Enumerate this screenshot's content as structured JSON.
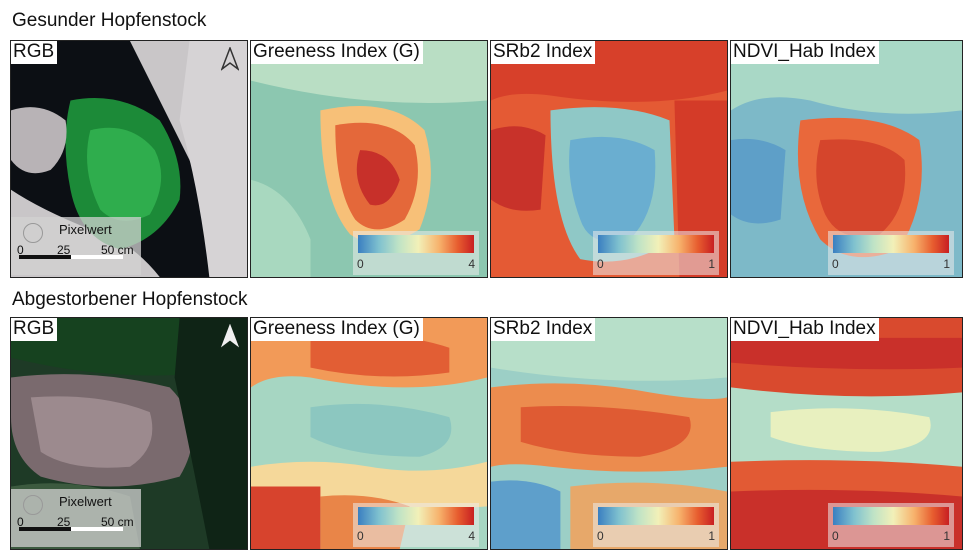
{
  "sections": [
    {
      "title": "Gesunder Hopfenstock",
      "panels": [
        {
          "label": "RGB",
          "scale": {
            "pixel_label": "Pixelwert",
            "ticks": [
              "0",
              "25",
              "50 cm"
            ]
          }
        },
        {
          "label": "Greeness Index (G)",
          "colorbar": {
            "min": "0",
            "max": "4"
          }
        },
        {
          "label": "SRb2 Index",
          "colorbar": {
            "min": "0",
            "max": "1"
          }
        },
        {
          "label": "NDVI_Hab Index",
          "colorbar": {
            "min": "0",
            "max": "1"
          }
        }
      ]
    },
    {
      "title": "Abgestorbener Hopfenstock",
      "panels": [
        {
          "label": "RGB",
          "scale": {
            "pixel_label": "Pixelwert",
            "ticks": [
              "0",
              "25",
              "50 cm"
            ]
          }
        },
        {
          "label": "Greeness Index (G)",
          "colorbar": {
            "min": "0",
            "max": "4"
          }
        },
        {
          "label": "SRb2 Index",
          "colorbar": {
            "min": "0",
            "max": "1"
          }
        },
        {
          "label": "NDVI_Hab Index",
          "colorbar": {
            "min": "0",
            "max": "1"
          }
        }
      ]
    }
  ],
  "colors": {
    "low": "#3a7fc1",
    "mid": "#f2f0b8",
    "high": "#c81f22"
  }
}
